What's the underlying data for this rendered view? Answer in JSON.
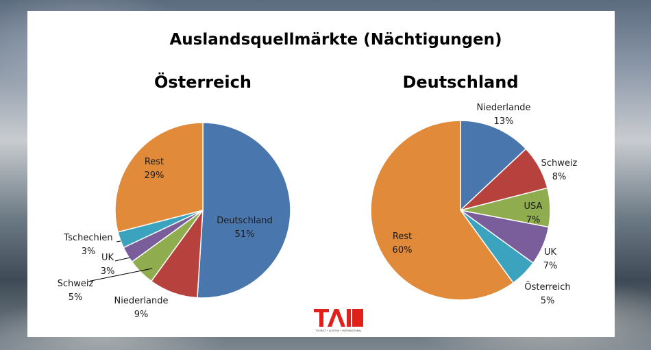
{
  "title": "Auslandsquellmärkte (Nächtigungen)",
  "logo": {
    "text": "TAI",
    "subtext": "TOURIST • AUSTRIA • INTERNATIONAL",
    "color": "#e0201b"
  },
  "chart_data": [
    {
      "type": "pie",
      "title": "Österreich",
      "slices": [
        {
          "label": "Deutschland",
          "value": 51,
          "pct_label": "51%",
          "color": "#4a76ae"
        },
        {
          "label": "Niederlande",
          "value": 9,
          "pct_label": "9%",
          "color": "#b7413c"
        },
        {
          "label": "Schweiz",
          "value": 5,
          "pct_label": "5%",
          "color": "#8fac4f"
        },
        {
          "label": "UK",
          "value": 3,
          "pct_label": "3%",
          "color": "#7a5d9b"
        },
        {
          "label": "Tschechien",
          "value": 3,
          "pct_label": "3%",
          "color": "#3ba3be"
        },
        {
          "label": "Rest",
          "value": 29,
          "pct_label": "29%",
          "color": "#e08a3a"
        }
      ]
    },
    {
      "type": "pie",
      "title": "Deutschland",
      "slices": [
        {
          "label": "Niederlande",
          "value": 13,
          "pct_label": "13%",
          "color": "#4a76ae"
        },
        {
          "label": "Schweiz",
          "value": 8,
          "pct_label": "8%",
          "color": "#b7413c"
        },
        {
          "label": "USA",
          "value": 7,
          "pct_label": "7%",
          "color": "#8fac4f"
        },
        {
          "label": "UK",
          "value": 7,
          "pct_label": "7%",
          "color": "#7a5d9b"
        },
        {
          "label": "Österreich",
          "value": 5,
          "pct_label": "5%",
          "color": "#3ba3be"
        },
        {
          "label": "Rest",
          "value": 60,
          "pct_label": "60%",
          "color": "#e08a3a"
        }
      ]
    }
  ]
}
